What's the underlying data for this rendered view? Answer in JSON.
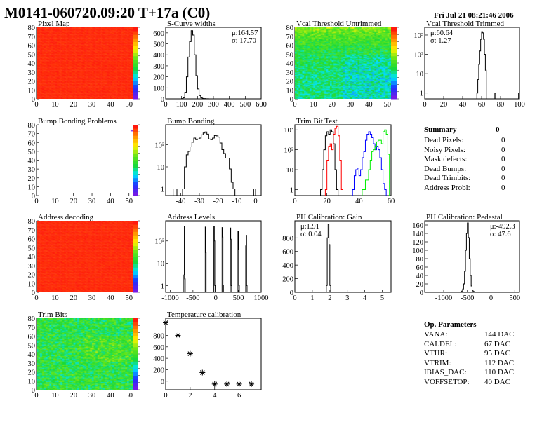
{
  "header": {
    "title": "M0141-060720.09:20 T+17a (C0)",
    "date": "Fri Jul 21 08:21:46 2006"
  },
  "summary": {
    "title": "Summary",
    "total": "0",
    "rows": [
      {
        "label": "Dead Pixels:",
        "value": "0"
      },
      {
        "label": "Noisy Pixels:",
        "value": "0"
      },
      {
        "label": "Mask defects:",
        "value": "0"
      },
      {
        "label": "Dead Bumps:",
        "value": "0"
      },
      {
        "label": "Dead Trimbits:",
        "value": "0"
      },
      {
        "label": "Address Probl:",
        "value": "0"
      }
    ]
  },
  "op_parameters": {
    "title": "Op. Parameters",
    "rows": [
      {
        "label": "VANA:",
        "value": "144 DAC"
      },
      {
        "label": "CALDEL:",
        "value": "67 DAC"
      },
      {
        "label": "VTHR:",
        "value": "95 DAC"
      },
      {
        "label": "VTRIM:",
        "value": "112 DAC"
      },
      {
        "label": "IBIAS_DAC:",
        "value": "110 DAC"
      },
      {
        "label": "VOFFSETOP:",
        "value": "40 DAC"
      }
    ]
  },
  "chart_data": [
    {
      "id": "pixel-map",
      "type": "heatmap",
      "title": "Pixel Map",
      "xlim": [
        0,
        52
      ],
      "ylim": [
        0,
        80
      ],
      "xticks": [
        "0",
        "10",
        "20",
        "30",
        "40",
        "50"
      ],
      "yticks": [
        "0",
        "10",
        "20",
        "30",
        "40",
        "50",
        "60",
        "70",
        "80"
      ],
      "pattern": "uniform",
      "value": 10,
      "zlim": [
        0,
        10
      ]
    },
    {
      "id": "s-curve-widths",
      "type": "bar",
      "title": "S-Curve widths",
      "xlim": [
        0,
        600
      ],
      "ylim": [
        0,
        650
      ],
      "log": false,
      "xticks": [
        "0",
        "100",
        "200",
        "300",
        "400",
        "500",
        "600"
      ],
      "yticks": [
        "0",
        "100",
        "200",
        "300",
        "400",
        "500",
        "600"
      ],
      "stats": [
        "μ:164.57",
        "σ: 17.70"
      ],
      "bin_width": 10,
      "series": [
        {
          "color": "#000000",
          "bins": [
            [
              100,
              2
            ],
            [
              110,
              10
            ],
            [
              120,
              60
            ],
            [
              130,
              200
            ],
            [
              140,
              380
            ],
            [
              150,
              520
            ],
            [
              160,
              620
            ],
            [
              170,
              580
            ],
            [
              180,
              400
            ],
            [
              190,
              210
            ],
            [
              200,
              90
            ],
            [
              210,
              30
            ],
            [
              220,
              10
            ],
            [
              230,
              4
            ],
            [
              240,
              2
            ],
            [
              250,
              1
            ],
            [
              260,
              1
            ]
          ]
        }
      ]
    },
    {
      "id": "vcal-threshold-untrimmed",
      "type": "heatmap",
      "title": "Vcal Threshold Untrimmed",
      "xlim": [
        0,
        52
      ],
      "ylim": [
        0,
        80
      ],
      "xticks": [
        "0",
        "10",
        "20",
        "30",
        "40",
        "50"
      ],
      "yticks": [
        "0",
        "10",
        "20",
        "30",
        "40",
        "50",
        "60",
        "70",
        "80"
      ],
      "pattern": "threshold",
      "zlim": [
        95,
        130
      ]
    },
    {
      "id": "vcal-threshold-trimmed",
      "type": "bar",
      "title": "Vcal Threshold Trimmed",
      "xlim": [
        0,
        100
      ],
      "ylim": [
        0.5,
        2500
      ],
      "log": true,
      "xticks": [
        "0",
        "20",
        "40",
        "60",
        "80",
        "100"
      ],
      "yticks": [
        "1",
        "10",
        "10²",
        "10³"
      ],
      "stats": [
        "μ:60.64",
        "σ: 1.27"
      ],
      "bin_width": 1,
      "series": [
        {
          "color": "#000000",
          "bins": [
            [
              55,
              1
            ],
            [
              56,
              5
            ],
            [
              57,
              30
            ],
            [
              58,
              150
            ],
            [
              59,
              600
            ],
            [
              60,
              1500
            ],
            [
              61,
              1300
            ],
            [
              62,
              600
            ],
            [
              63,
              100
            ],
            [
              64,
              15
            ],
            [
              74,
              1
            ],
            [
              99,
              1
            ]
          ]
        }
      ]
    },
    {
      "id": "bump-bonding-problems",
      "type": "heatmap",
      "title": "Bump Bonding Problems",
      "xlim": [
        0,
        52
      ],
      "ylim": [
        0,
        80
      ],
      "xticks": [
        "0",
        "10",
        "20",
        "30",
        "40",
        "50"
      ],
      "yticks": [
        "0",
        "10",
        "20",
        "30",
        "40",
        "50",
        "60",
        "70",
        "80"
      ],
      "pattern": "sparse",
      "hits": [
        [
          51,
          73
        ]
      ],
      "zlim": [
        -2,
        2
      ]
    },
    {
      "id": "bump-bonding",
      "type": "bar",
      "title": "Bump Bonding",
      "xlim": [
        -48,
        3
      ],
      "ylim": [
        0.5,
        800
      ],
      "log": true,
      "xticks": [
        "-40",
        "-30",
        "-20",
        "-10",
        "0"
      ],
      "yticks": [
        "1",
        "10",
        "10²"
      ],
      "bin_width": 1,
      "series": [
        {
          "color": "#000000",
          "bins": [
            [
              -44,
              1
            ],
            [
              -43,
              1
            ],
            [
              -39,
              1
            ],
            [
              -38,
              10
            ],
            [
              -37,
              35
            ],
            [
              -36,
              50
            ],
            [
              -35,
              80
            ],
            [
              -34,
              130
            ],
            [
              -33,
              200
            ],
            [
              -32,
              170
            ],
            [
              -31,
              180
            ],
            [
              -30,
              200
            ],
            [
              -29,
              280
            ],
            [
              -28,
              340
            ],
            [
              -27,
              380
            ],
            [
              -26,
              300
            ],
            [
              -25,
              180
            ],
            [
              -24,
              170
            ],
            [
              -23,
              200
            ],
            [
              -22,
              260
            ],
            [
              -21,
              250
            ],
            [
              -20,
              220
            ],
            [
              -19,
              120
            ],
            [
              -18,
              60
            ],
            [
              -17,
              40
            ],
            [
              -16,
              25
            ],
            [
              -15,
              25
            ],
            [
              -14,
              8
            ],
            [
              -13,
              2
            ],
            [
              -12,
              1
            ],
            [
              -1,
              1
            ]
          ]
        }
      ]
    },
    {
      "id": "trim-bit-test",
      "type": "bar",
      "title": "Trim Bit Test",
      "xlim": [
        0,
        60
      ],
      "ylim": [
        0.5,
        1800
      ],
      "log": true,
      "xticks": [
        "0",
        "20",
        "40",
        "60"
      ],
      "yticks": [
        "1",
        "10",
        "10²",
        "10³"
      ],
      "bin_width": 1,
      "series": [
        {
          "color": "#000000",
          "bins": [
            [
              16,
              1
            ],
            [
              17,
              10
            ],
            [
              18,
              100
            ],
            [
              19,
              500
            ],
            [
              20,
              800
            ],
            [
              21,
              600
            ],
            [
              22,
              1000
            ],
            [
              23,
              800
            ],
            [
              24,
              200
            ],
            [
              25,
              10
            ],
            [
              26,
              1
            ]
          ]
        },
        {
          "color": "#ff0000",
          "bins": [
            [
              19,
              1
            ],
            [
              20,
              30
            ],
            [
              21,
              150
            ],
            [
              22,
              200
            ],
            [
              23,
              100
            ],
            [
              24,
              600
            ],
            [
              25,
              1200
            ],
            [
              26,
              1500
            ],
            [
              27,
              500
            ],
            [
              28,
              30
            ],
            [
              29,
              1
            ]
          ]
        },
        {
          "color": "#0000ff",
          "bins": [
            [
              36,
              1
            ],
            [
              37,
              5
            ],
            [
              38,
              10
            ],
            [
              39,
              12
            ],
            [
              40,
              5
            ],
            [
              41,
              10
            ],
            [
              42,
              40
            ],
            [
              43,
              80
            ],
            [
              44,
              300
            ],
            [
              45,
              600
            ],
            [
              46,
              800
            ],
            [
              47,
              600
            ],
            [
              48,
              400
            ],
            [
              49,
              200
            ],
            [
              50,
              100
            ],
            [
              51,
              150
            ],
            [
              52,
              100
            ],
            [
              53,
              40
            ],
            [
              54,
              10
            ],
            [
              55,
              2
            ],
            [
              56,
              1
            ]
          ]
        },
        {
          "color": "#00ee00",
          "bins": [
            [
              42,
              1
            ],
            [
              43,
              1
            ],
            [
              44,
              3
            ],
            [
              45,
              3
            ],
            [
              46,
              10
            ],
            [
              47,
              30
            ],
            [
              48,
              80
            ],
            [
              49,
              100
            ],
            [
              50,
              150
            ],
            [
              51,
              250
            ],
            [
              52,
              300
            ],
            [
              53,
              300
            ],
            [
              54,
              200
            ],
            [
              55,
              800
            ],
            [
              56,
              1000
            ],
            [
              57,
              600
            ],
            [
              58,
              60
            ]
          ]
        }
      ]
    },
    {
      "id": "address-decoding",
      "type": "heatmap",
      "title": "Address decoding",
      "xlim": [
        0,
        52
      ],
      "ylim": [
        0,
        80
      ],
      "xticks": [
        "0",
        "10",
        "20",
        "30",
        "40",
        "50"
      ],
      "yticks": [
        "0",
        "10",
        "20",
        "30",
        "40",
        "50",
        "60",
        "70",
        "80"
      ],
      "pattern": "uniform",
      "value": 1,
      "zlim": [
        0,
        1
      ]
    },
    {
      "id": "address-levels",
      "type": "bar",
      "title": "Address Levels",
      "xlim": [
        -1100,
        1000
      ],
      "ylim": [
        0.5,
        800
      ],
      "log": true,
      "xticks": [
        "-1000",
        "-500",
        "0",
        "500",
        "1000"
      ],
      "yticks": [
        "1",
        "10",
        "10²"
      ],
      "bin_width": 10,
      "series": [
        {
          "color": "#000000",
          "bins": [
            [
              -700,
              3
            ],
            [
              -690,
              450
            ],
            [
              -680,
              2
            ],
            [
              -230,
              420
            ],
            [
              -220,
              30
            ],
            [
              -40,
              450
            ],
            [
              -30,
              100
            ],
            [
              -20,
              1
            ],
            [
              140,
              400
            ],
            [
              150,
              150
            ],
            [
              160,
              1
            ],
            [
              320,
              380
            ],
            [
              330,
              120
            ],
            [
              340,
              1
            ],
            [
              490,
              260
            ],
            [
              500,
              40
            ],
            [
              510,
              1
            ],
            [
              660,
              60
            ],
            [
              670,
              180
            ],
            [
              680,
              1
            ]
          ]
        }
      ]
    },
    {
      "id": "ph-calibration-gain",
      "type": "bar",
      "title": "PH Calibration: Gain",
      "xlim": [
        0,
        5.5
      ],
      "ylim": [
        0,
        1050
      ],
      "log": false,
      "xticks": [
        "0",
        "1",
        "2",
        "3",
        "4",
        "5"
      ],
      "yticks": [
        "0",
        "200",
        "400",
        "600",
        "800"
      ],
      "stats": [
        "μ:1.91",
        "σ: 0.04"
      ],
      "bin_width": 0.05,
      "series": [
        {
          "color": "#000000",
          "bins": [
            [
              1.75,
              5
            ],
            [
              1.8,
              100
            ],
            [
              1.85,
              800
            ],
            [
              1.9,
              1000
            ],
            [
              1.95,
              700
            ],
            [
              2.0,
              100
            ],
            [
              2.05,
              5
            ]
          ]
        }
      ]
    },
    {
      "id": "ph-calibration-pedestal",
      "type": "bar",
      "title": "PH Calibration: Pedestal",
      "xlim": [
        -1400,
        600
      ],
      "ylim": [
        0,
        170
      ],
      "log": false,
      "xticks": [
        "-1000",
        "-500",
        "0",
        "500"
      ],
      "yticks": [
        "0",
        "20",
        "40",
        "60",
        "80",
        "100",
        "120",
        "140",
        "160"
      ],
      "stats": [
        "μ:-492.3",
        "σ: 47.6"
      ],
      "bin_width": 20,
      "series": [
        {
          "color": "#000000",
          "bins": [
            [
              -640,
              1
            ],
            [
              -620,
              3
            ],
            [
              -600,
              8
            ],
            [
              -580,
              20
            ],
            [
              -560,
              50
            ],
            [
              -540,
              100
            ],
            [
              -520,
              140
            ],
            [
              -500,
              165
            ],
            [
              -480,
              130
            ],
            [
              -460,
              80
            ],
            [
              -440,
              40
            ],
            [
              -420,
              15
            ],
            [
              -400,
              5
            ],
            [
              -380,
              2
            ],
            [
              -360,
              1
            ]
          ]
        }
      ]
    },
    {
      "id": "trim-bits",
      "type": "heatmap",
      "title": "Trim Bits",
      "xlim": [
        0,
        52
      ],
      "ylim": [
        0,
        80
      ],
      "xticks": [
        "0",
        "10",
        "20",
        "30",
        "40",
        "50"
      ],
      "yticks": [
        "0",
        "10",
        "20",
        "30",
        "40",
        "50",
        "60",
        "70",
        "80"
      ],
      "pattern": "trim",
      "zlim": [
        0,
        16
      ]
    },
    {
      "id": "temperature-calibration",
      "type": "scatter",
      "title": "Temperature calibration",
      "xlim": [
        0,
        7.8
      ],
      "ylim": [
        -150,
        1100
      ],
      "log": false,
      "xticks": [
        "0",
        "2",
        "4",
        "6"
      ],
      "yticks": [
        "0",
        "200",
        "400",
        "600",
        "800"
      ],
      "x": [
        0,
        1,
        2,
        3,
        4,
        5,
        6,
        7
      ],
      "y": [
        1020,
        800,
        480,
        150,
        -50,
        -50,
        -50,
        -50
      ]
    }
  ]
}
